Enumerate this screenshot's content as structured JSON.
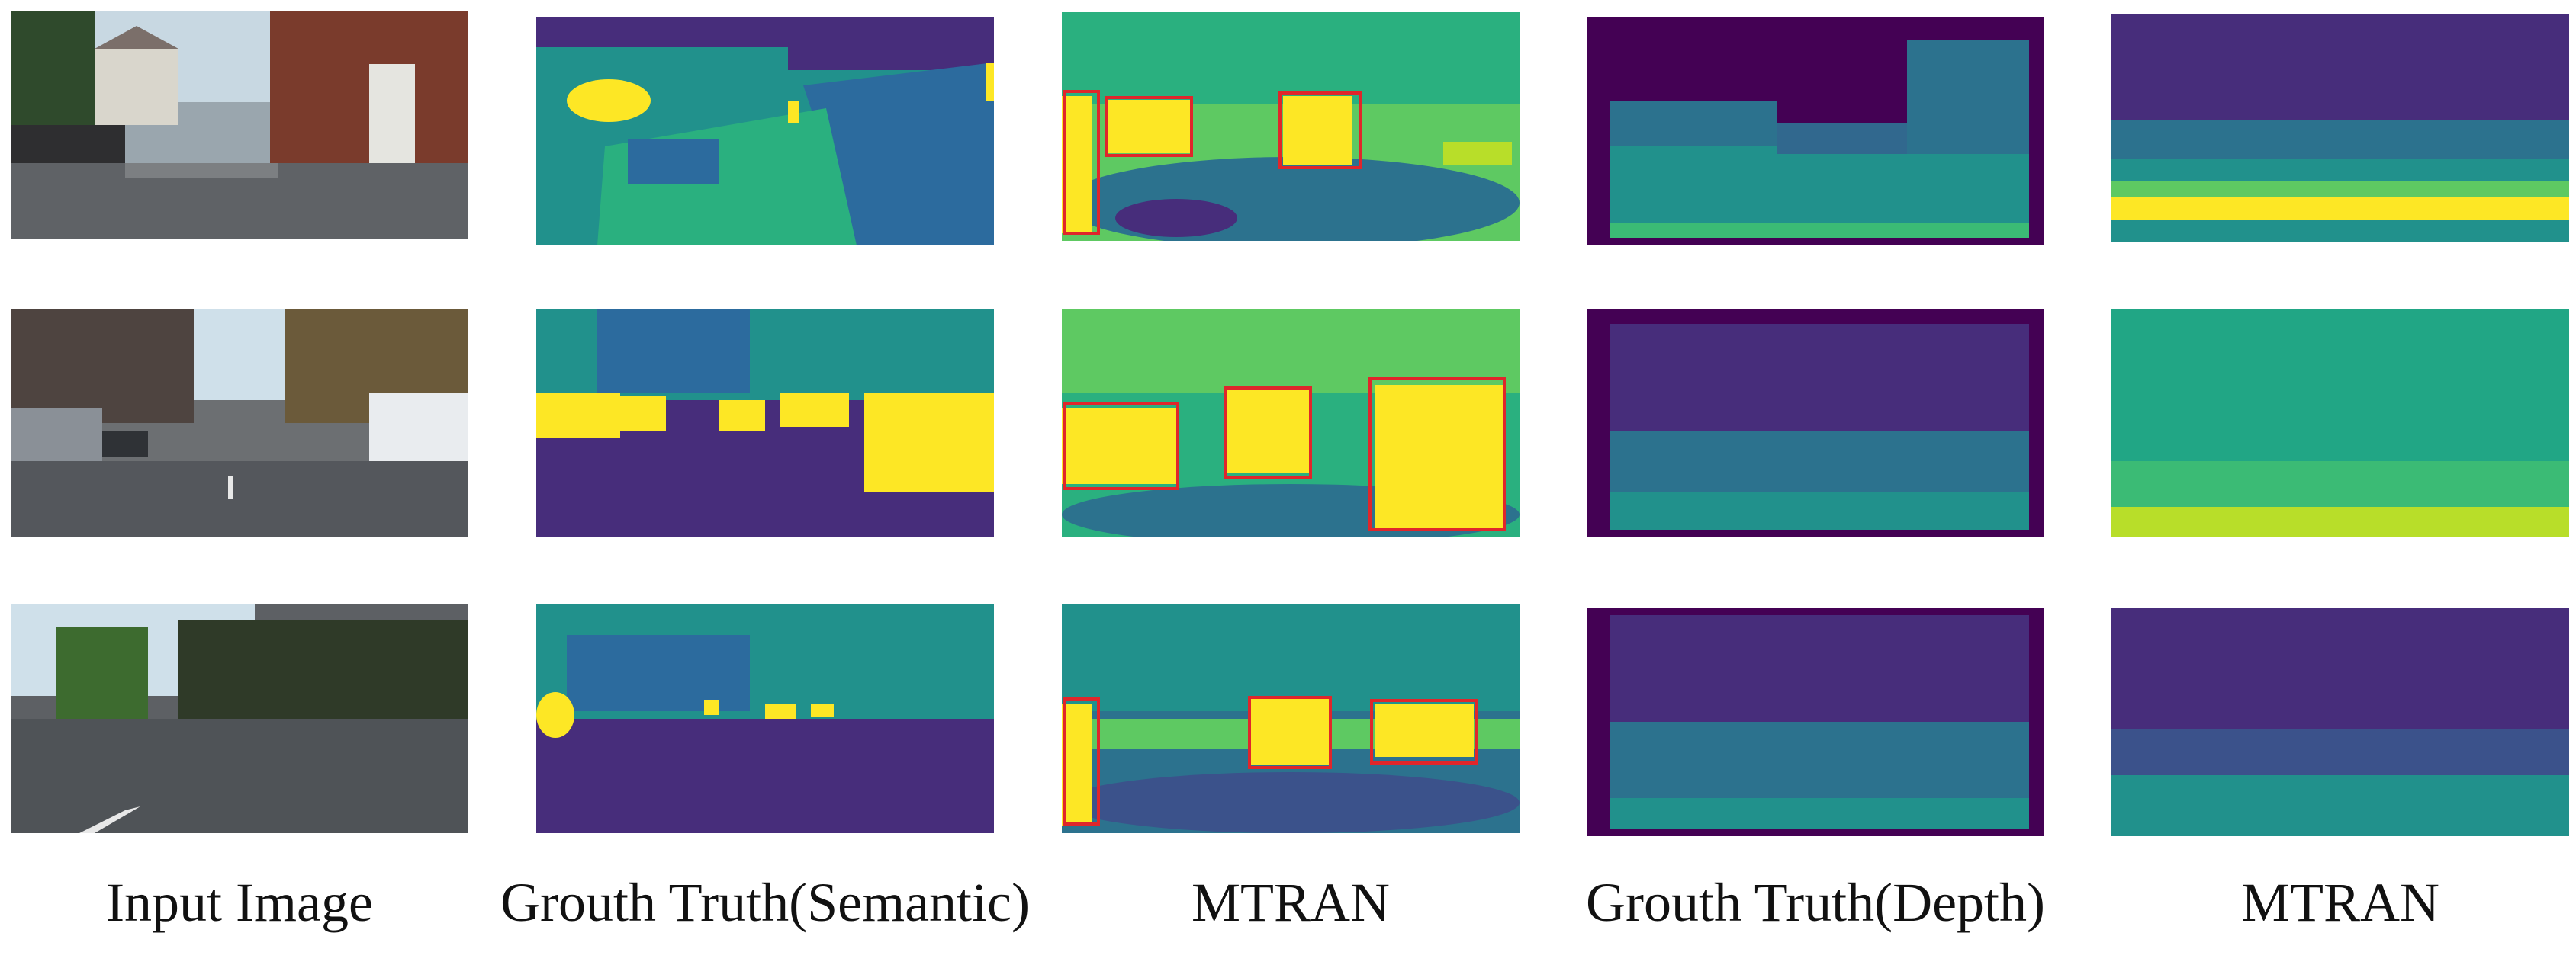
{
  "figure": {
    "columns": [
      {
        "key": "input",
        "label": "Input Image"
      },
      {
        "key": "gt_semantic",
        "label": "Grouth Truth(Semantic)"
      },
      {
        "key": "mtran_semantic",
        "label": "MTRAN"
      },
      {
        "key": "gt_depth",
        "label": "Grouth Truth(Depth)"
      },
      {
        "key": "mtran_depth",
        "label": "MTRAN"
      }
    ],
    "rows": [
      {
        "index": 1,
        "scene": "residential street with brick building and parked cars",
        "highlight_boxes": 3
      },
      {
        "index": 2,
        "scene": "urban street lined with parked cars",
        "highlight_boxes": 3
      },
      {
        "index": 3,
        "scene": "tree-lined road with lane markings",
        "highlight_boxes": 3
      }
    ],
    "colors": {
      "viridis_dark": "#440154",
      "viridis_purple": "#472d7b",
      "viridis_blue": "#2c728e",
      "viridis_teal": "#21918c",
      "viridis_green": "#5ec962",
      "viridis_yellow": "#fde725",
      "highlight_box": "#e0262b"
    }
  }
}
